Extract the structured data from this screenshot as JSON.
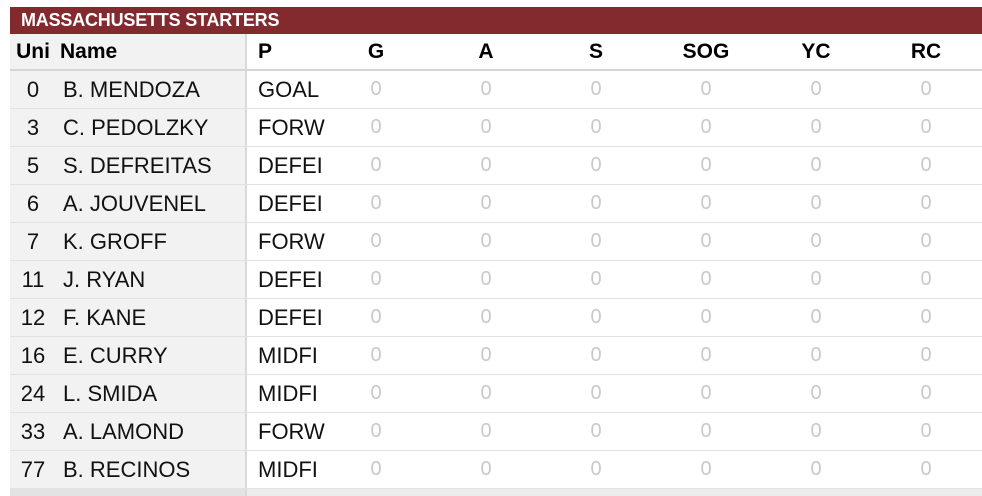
{
  "title": "MASSACHUSETTS STARTERS",
  "columns": {
    "uni": "Uni",
    "name": "Name",
    "pos": "P",
    "g": "G",
    "a": "A",
    "s": "S",
    "sog": "SOG",
    "yc": "YC",
    "rc": "RC"
  },
  "rows": [
    {
      "uni": "0",
      "name": "B. MENDOZA",
      "pos": "GOAL",
      "g": "0",
      "a": "0",
      "s": "0",
      "sog": "0",
      "yc": "0",
      "rc": "0"
    },
    {
      "uni": "3",
      "name": "C. PEDOLZKY",
      "pos": "FORW",
      "g": "0",
      "a": "0",
      "s": "0",
      "sog": "0",
      "yc": "0",
      "rc": "0"
    },
    {
      "uni": "5",
      "name": "S. DEFREITAS",
      "pos": "DEFEI",
      "g": "0",
      "a": "0",
      "s": "0",
      "sog": "0",
      "yc": "0",
      "rc": "0"
    },
    {
      "uni": "6",
      "name": "A. JOUVENEL",
      "pos": "DEFEI",
      "g": "0",
      "a": "0",
      "s": "0",
      "sog": "0",
      "yc": "0",
      "rc": "0"
    },
    {
      "uni": "7",
      "name": "K. GROFF",
      "pos": "FORW",
      "g": "0",
      "a": "0",
      "s": "0",
      "sog": "0",
      "yc": "0",
      "rc": "0"
    },
    {
      "uni": "11",
      "name": "J. RYAN",
      "pos": "DEFEI",
      "g": "0",
      "a": "0",
      "s": "0",
      "sog": "0",
      "yc": "0",
      "rc": "0"
    },
    {
      "uni": "12",
      "name": "F. KANE",
      "pos": "DEFEI",
      "g": "0",
      "a": "0",
      "s": "0",
      "sog": "0",
      "yc": "0",
      "rc": "0"
    },
    {
      "uni": "16",
      "name": "E. CURRY",
      "pos": "MIDFI",
      "g": "0",
      "a": "0",
      "s": "0",
      "sog": "0",
      "yc": "0",
      "rc": "0"
    },
    {
      "uni": "24",
      "name": "L. SMIDA",
      "pos": "MIDFI",
      "g": "0",
      "a": "0",
      "s": "0",
      "sog": "0",
      "yc": "0",
      "rc": "0"
    },
    {
      "uni": "33",
      "name": "A. LAMOND",
      "pos": "FORW",
      "g": "0",
      "a": "0",
      "s": "0",
      "sog": "0",
      "yc": "0",
      "rc": "0"
    },
    {
      "uni": "77",
      "name": "B. RECINOS",
      "pos": "MIDFI",
      "g": "0",
      "a": "0",
      "s": "0",
      "sog": "0",
      "yc": "0",
      "rc": "0"
    }
  ],
  "colors": {
    "title_bar": "#832a2f",
    "title_text": "#ffffff",
    "stat_zero": "#c9c9c9",
    "frozen_column_bg": "#f2f2f2"
  }
}
